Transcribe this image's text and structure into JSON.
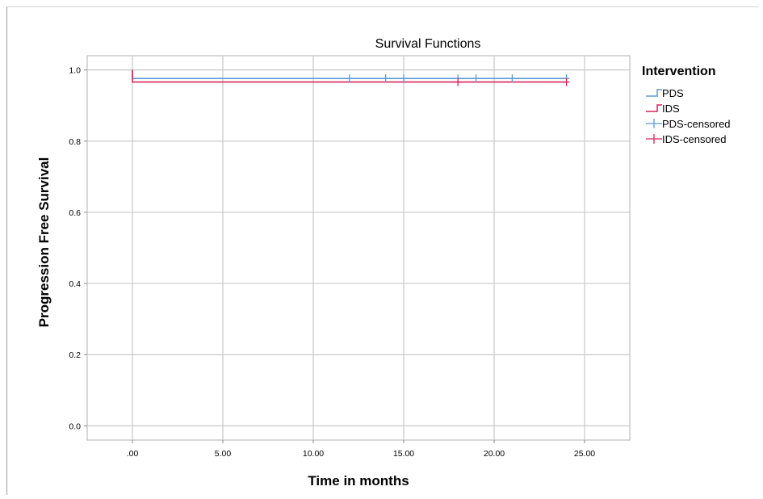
{
  "chart_data": {
    "type": "line",
    "title": "Survival Functions",
    "xlabel": "Time in months",
    "ylabel": "Progression Free Survival",
    "xlim": [
      -2.5,
      27.5
    ],
    "ylim": [
      -0.04,
      1.04
    ],
    "x_ticks": [
      0,
      5,
      10,
      15,
      20,
      25
    ],
    "x_tick_labels": [
      ".00",
      "5.00",
      "10.00",
      "15.00",
      "20.00",
      "25.00"
    ],
    "y_ticks": [
      0,
      0.2,
      0.4,
      0.6,
      0.8,
      1.0
    ],
    "y_tick_labels": [
      "0.0",
      "0.2",
      "0.4",
      "0.6",
      "0.8",
      "1.0"
    ],
    "grid": true,
    "legend_title": "Intervention",
    "legend_position": "right",
    "series": [
      {
        "name": "PDS",
        "color": "#5b9bd5",
        "steps": [
          [
            0,
            1.0
          ],
          [
            0,
            0.976
          ],
          [
            24,
            0.976
          ]
        ],
        "censored_name": "PDS-censored",
        "censored": [
          12,
          14,
          15,
          18,
          19,
          21,
          24
        ]
      },
      {
        "name": "IDS",
        "color": "#d6245a",
        "steps": [
          [
            0,
            1.0
          ],
          [
            0,
            0.966
          ],
          [
            24,
            0.966
          ]
        ],
        "censored_name": "IDS-censored",
        "censored": [
          18,
          24
        ]
      }
    ]
  }
}
